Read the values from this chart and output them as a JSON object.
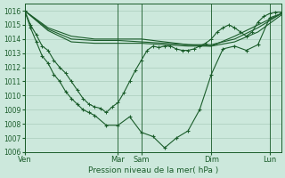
{
  "bg_color": "#cce8dc",
  "grid_color": "#aaccbb",
  "line_color": "#1a5c2a",
  "xlabel_text": "Pression niveau de la mer( hPa )",
  "x_ticks_labels": [
    "Ven",
    "Mar",
    "Sam",
    "Dim",
    "Lun"
  ],
  "x_ticks_pos": [
    0,
    96,
    120,
    192,
    252
  ],
  "xlim": [
    0,
    264
  ],
  "ylim": [
    1006,
    1016.5
  ],
  "yticks": [
    1006,
    1007,
    1008,
    1009,
    1010,
    1011,
    1012,
    1013,
    1014,
    1015,
    1016
  ],
  "vlines": [
    0,
    96,
    120,
    192,
    252
  ],
  "smooth1_x": [
    0,
    24,
    48,
    72,
    96,
    120,
    144,
    168,
    192,
    216,
    240,
    264
  ],
  "smooth1_y": [
    1016.0,
    1014.8,
    1014.2,
    1014.0,
    1014.0,
    1014.0,
    1013.8,
    1013.6,
    1013.5,
    1014.2,
    1015.0,
    1015.8
  ],
  "smooth2_x": [
    0,
    24,
    48,
    72,
    96,
    120,
    144,
    168,
    192,
    216,
    240,
    264
  ],
  "smooth2_y": [
    1016.0,
    1014.7,
    1014.0,
    1013.9,
    1013.9,
    1013.8,
    1013.7,
    1013.6,
    1013.6,
    1014.0,
    1014.8,
    1015.8
  ],
  "smooth3_x": [
    0,
    24,
    48,
    72,
    96,
    120,
    144,
    168,
    192,
    216,
    240,
    264
  ],
  "smooth3_y": [
    1016.0,
    1014.6,
    1013.8,
    1013.7,
    1013.7,
    1013.7,
    1013.6,
    1013.5,
    1013.5,
    1013.8,
    1014.5,
    1015.7
  ],
  "main_x": [
    0,
    6,
    12,
    18,
    24,
    30,
    36,
    42,
    48,
    54,
    60,
    66,
    72,
    78,
    84,
    90,
    96,
    102,
    108,
    114,
    120,
    126,
    132,
    138,
    144,
    150,
    156,
    162,
    168,
    174,
    180,
    186,
    192,
    198,
    204,
    210,
    216,
    222,
    228,
    234,
    240,
    246,
    252,
    258,
    264
  ],
  "main_y": [
    1016.0,
    1015.0,
    1014.3,
    1013.5,
    1013.2,
    1012.5,
    1012.0,
    1011.6,
    1011.0,
    1010.4,
    1009.8,
    1009.4,
    1009.2,
    1009.1,
    1008.8,
    1009.2,
    1009.5,
    1010.2,
    1011.0,
    1011.8,
    1012.5,
    1013.2,
    1013.5,
    1013.4,
    1013.5,
    1013.5,
    1013.3,
    1013.2,
    1013.2,
    1013.3,
    1013.5,
    1013.7,
    1014.0,
    1014.5,
    1014.8,
    1015.0,
    1014.8,
    1014.5,
    1014.2,
    1014.5,
    1015.2,
    1015.6,
    1015.8,
    1015.9,
    1015.9
  ],
  "main2_x": [
    0,
    6,
    12,
    18,
    24,
    30,
    36,
    42,
    48,
    54,
    60,
    66,
    72,
    84,
    96,
    108,
    120,
    132,
    144,
    156,
    168,
    180,
    192,
    204,
    216,
    228,
    240,
    252,
    264
  ],
  "main2_y": [
    1016.0,
    1014.8,
    1013.8,
    1012.8,
    1012.3,
    1011.5,
    1011.0,
    1010.3,
    1009.8,
    1009.4,
    1009.0,
    1008.8,
    1008.6,
    1007.9,
    1007.9,
    1008.5,
    1007.4,
    1007.1,
    1006.3,
    1007.0,
    1007.5,
    1009.0,
    1011.5,
    1013.3,
    1013.5,
    1013.2,
    1013.6,
    1015.5,
    1015.8
  ]
}
